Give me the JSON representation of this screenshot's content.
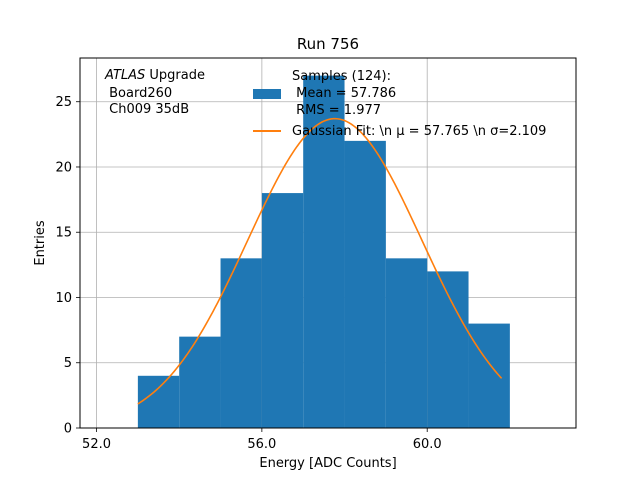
{
  "chart_data": {
    "type": "bar",
    "title": "Run 756",
    "xlabel": "Energy [ADC Counts]",
    "ylabel": "Entries",
    "xlim": [
      51.6,
      63.6
    ],
    "ylim": [
      0,
      28.35
    ],
    "xticks": [
      52.0,
      56.0,
      60.0
    ],
    "xtick_labels": [
      "52.0",
      "56.0",
      "60.0"
    ],
    "yticks": [
      0,
      5,
      10,
      15,
      20,
      25
    ],
    "ytick_labels": [
      "0",
      "5",
      "10",
      "15",
      "20",
      "25"
    ],
    "grid": true,
    "bins": [
      {
        "x0": 53.0,
        "x1": 54.0,
        "count": 4
      },
      {
        "x0": 54.0,
        "x1": 55.0,
        "count": 7
      },
      {
        "x0": 55.0,
        "x1": 56.0,
        "count": 13
      },
      {
        "x0": 56.0,
        "x1": 57.0,
        "count": 18
      },
      {
        "x0": 57.0,
        "x1": 58.0,
        "count": 27
      },
      {
        "x0": 58.0,
        "x1": 59.0,
        "count": 22
      },
      {
        "x0": 59.0,
        "x1": 60.0,
        "count": 13
      },
      {
        "x0": 60.0,
        "x1": 61.0,
        "count": 12
      },
      {
        "x0": 61.0,
        "x1": 62.0,
        "count": 8
      }
    ],
    "fit": {
      "mu": 57.765,
      "sigma": 2.109,
      "amplitude": 23.7,
      "x_range": [
        53.0,
        61.8
      ]
    },
    "colors": {
      "hist": "#1f77b4",
      "fit": "#ff7f0e",
      "grid": "#b0b0b0"
    },
    "annotation": {
      "italic": "ATLAS",
      "rest": " Upgrade",
      "line2": " Board260",
      "line3": " Ch009 35dB"
    },
    "legend": {
      "placement": "top-center",
      "hist_lines": [
        "Samples (124):",
        " Mean = 57.786",
        " RMS = 1.977"
      ],
      "fit_label": "Gaussian Fit: \\n μ = 57.765 \\n σ=2.109"
    }
  }
}
